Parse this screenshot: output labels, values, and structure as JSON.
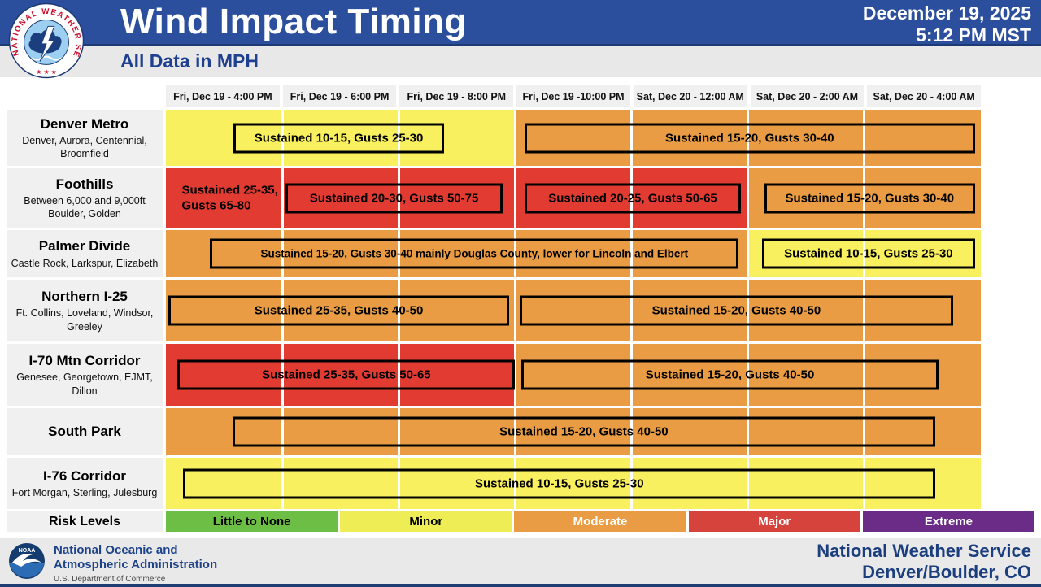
{
  "header": {
    "title": "Wind Impact Timing",
    "subtitle": "All Data in MPH",
    "date": "December 19, 2025",
    "time": "5:12 PM MST",
    "bar_color": "#2B4F9C"
  },
  "chart_data": {
    "type": "heatmap",
    "title": "Wind Impact Timing",
    "units": "MPH",
    "time_columns": [
      "Fri, Dec 19 - 4:00 PM",
      "Fri, Dec 19 - 6:00 PM",
      "Fri, Dec 19 - 8:00 PM",
      "Fri, Dec 19 -10:00 PM",
      "Sat, Dec 20 - 12:00 AM",
      "Sat, Dec 20 - 2:00 AM",
      "Sat, Dec 20 - 4:00 AM"
    ],
    "risk_colors": {
      "Little to None": "#6CBE45",
      "Minor": "#F8F05E",
      "Moderate": "#E99C44",
      "Major": "#E23B31",
      "Extreme": "#6B2C87"
    },
    "rows": [
      {
        "region": "Denver Metro",
        "areas": "Denver, Aurora, Centennial, Broomfield",
        "segments": [
          {
            "start": 0,
            "end": 3,
            "risk": "Minor"
          },
          {
            "start": 3,
            "end": 7,
            "risk": "Moderate"
          }
        ],
        "annotations": [
          {
            "text": "Sustained 10-15, Gusts 25-30",
            "start": 0.58,
            "end": 2.39,
            "boxed": true
          },
          {
            "text": "Sustained 15-20, Gusts 30-40",
            "start": 3.08,
            "end": 6.95,
            "boxed": true
          }
        ]
      },
      {
        "region": "Foothills",
        "areas": "Between 6,000 and 9,000ft Boulder, Golden",
        "segments": [
          {
            "start": 0,
            "end": 5,
            "risk": "Major"
          },
          {
            "start": 5,
            "end": 7,
            "risk": "Moderate"
          }
        ],
        "annotations": [
          {
            "text": "Sustained 25-35, Gusts 65-80",
            "start": 0.08,
            "end": 0.97,
            "boxed": false
          },
          {
            "text": "Sustained 20-30, Gusts 50-75",
            "start": 1.03,
            "end": 2.89,
            "boxed": true
          },
          {
            "text": "Sustained 20-25, Gusts 50-65",
            "start": 3.08,
            "end": 4.94,
            "boxed": true
          },
          {
            "text": "Sustained 15-20, Gusts 30-40",
            "start": 5.14,
            "end": 6.95,
            "boxed": true
          }
        ]
      },
      {
        "region": "Palmer Divide",
        "areas": "Castle Rock, Larkspur, Elizabeth",
        "segments": [
          {
            "start": 0,
            "end": 5,
            "risk": "Moderate"
          },
          {
            "start": 5,
            "end": 7,
            "risk": "Minor"
          }
        ],
        "annotations": [
          {
            "text": "Sustained 15-20, Gusts 30-40 mainly Douglas County, lower for Lincoln and Elbert",
            "start": 0.38,
            "end": 4.92,
            "boxed": true
          },
          {
            "text": "Sustained 10-15, Gusts 25-30",
            "start": 5.12,
            "end": 6.95,
            "boxed": true
          }
        ]
      },
      {
        "region": "Northern I-25",
        "areas": "Ft. Collins, Loveland, Windsor, Greeley",
        "segments": [
          {
            "start": 0,
            "end": 7,
            "risk": "Moderate"
          }
        ],
        "annotations": [
          {
            "text": "Sustained 25-35, Gusts 40-50",
            "start": 0.02,
            "end": 2.95,
            "boxed": true
          },
          {
            "text": "Sustained 15-20, Gusts 40-50",
            "start": 3.04,
            "end": 6.76,
            "boxed": true
          }
        ]
      },
      {
        "region": "I-70 Mtn Corridor",
        "areas": "Genesee, Georgetown, EJMT, Dillon",
        "segments": [
          {
            "start": 0,
            "end": 3,
            "risk": "Major"
          },
          {
            "start": 3,
            "end": 7,
            "risk": "Moderate"
          }
        ],
        "annotations": [
          {
            "text": "Sustained 25-35, Gusts 50-65",
            "start": 0.1,
            "end": 3.0,
            "boxed": true
          },
          {
            "text": "Sustained 15-20, Gusts 40-50",
            "start": 3.05,
            "end": 6.64,
            "boxed": true
          }
        ]
      },
      {
        "region": "South Park",
        "areas": "",
        "segments": [
          {
            "start": 0,
            "end": 7,
            "risk": "Moderate"
          }
        ],
        "annotations": [
          {
            "text": "Sustained 15-20, Gusts 40-50",
            "start": 0.57,
            "end": 6.61,
            "boxed": true
          }
        ]
      },
      {
        "region": "I-76 Corridor",
        "areas": "Fort Morgan, Sterling, Julesburg",
        "segments": [
          {
            "start": 0,
            "end": 7,
            "risk": "Minor"
          }
        ],
        "annotations": [
          {
            "text": "Sustained 10-15, Gusts 25-30",
            "start": 0.15,
            "end": 6.61,
            "boxed": true
          }
        ]
      }
    ]
  },
  "legend": {
    "title": "Risk Levels",
    "levels": [
      {
        "label": "Little to None",
        "color": "#6CBE45",
        "text": "#000000"
      },
      {
        "label": "Minor",
        "color": "#EFED55",
        "text": "#000000"
      },
      {
        "label": "Moderate",
        "color": "#E99C44",
        "text": "#FFFFFF"
      },
      {
        "label": "Major",
        "color": "#D5433C",
        "text": "#FFFFFF"
      },
      {
        "label": "Extreme",
        "color": "#6B2C87",
        "text": "#FFFFFF"
      }
    ]
  },
  "footer": {
    "agency_line1": "National Oceanic and",
    "agency_line2": "Atmospheric Administration",
    "agency_sub": "U.S. Department of Commerce",
    "office_line1": "National Weather Service",
    "office_line2": "Denver/Boulder, CO"
  }
}
